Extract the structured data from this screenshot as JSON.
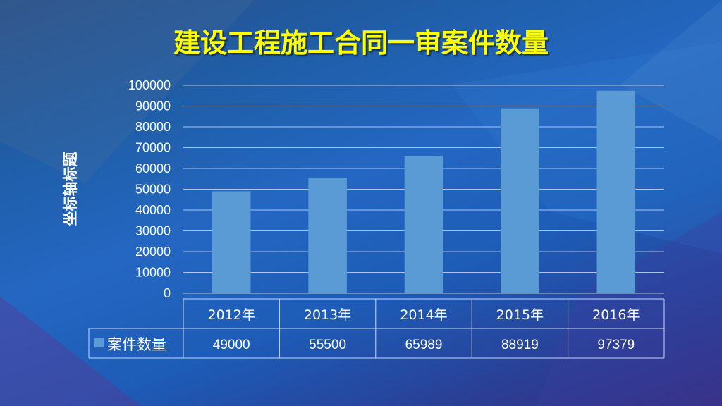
{
  "colors": {
    "title": "#ffff00",
    "bar": "#5b9bd5",
    "text": "#ffffff",
    "gridline": "#c9d7ee"
  },
  "chart_data": {
    "type": "bar",
    "title": "建设工程施工合同一审案件数量",
    "ylabel": "坐标轴标题",
    "xlabel": "",
    "ylim": [
      0,
      100000
    ],
    "yticks": [
      0,
      10000,
      20000,
      30000,
      40000,
      50000,
      60000,
      70000,
      80000,
      90000,
      100000
    ],
    "categories": [
      "2012年",
      "2013年",
      "2014年",
      "2015年",
      "2016年"
    ],
    "series": [
      {
        "name": "案件数量",
        "values": [
          49000,
          55500,
          65989,
          88919,
          97379
        ]
      }
    ],
    "grid": true,
    "legend": "data-table",
    "data_table": true
  }
}
